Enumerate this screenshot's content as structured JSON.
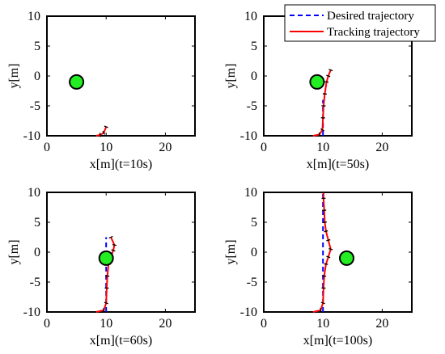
{
  "chart_data": [
    {
      "type": "line",
      "xlabel": "x[m](t=10s)",
      "ylabel": "y[m]",
      "xlim": [
        0,
        25
      ],
      "ylim": [
        -10,
        10
      ],
      "xticks": [
        "0",
        "10",
        "20"
      ],
      "yticks": [
        "10",
        "5",
        "0",
        "-5",
        "-10"
      ],
      "obstacle": {
        "x": 5,
        "y": -1,
        "color": "#22ee22"
      },
      "series": [
        {
          "role": "desired",
          "color": "#0000ff",
          "style": "dashed",
          "points": []
        },
        {
          "role": "tracking",
          "color": "#ff0000",
          "style": "solid",
          "points": [
            [
              8.3,
              -10.0
            ],
            [
              9.0,
              -9.85
            ],
            [
              9.6,
              -9.5
            ],
            [
              10.0,
              -8.5
            ]
          ]
        }
      ]
    },
    {
      "type": "line",
      "xlabel": "x[m](t=50s)",
      "ylabel": "y[m]",
      "xlim": [
        0,
        25
      ],
      "ylim": [
        -10,
        10
      ],
      "xticks": [
        "0",
        "10",
        "20"
      ],
      "yticks": [
        "10",
        "5",
        "0",
        "-5",
        "-10"
      ],
      "obstacle": {
        "x": 9,
        "y": -1,
        "color": "#22ee22"
      },
      "series": [
        {
          "role": "desired",
          "color": "#0000ff",
          "style": "dashed",
          "points": [
            [
              10,
              -10
            ],
            [
              10,
              -4
            ]
          ]
        },
        {
          "role": "tracking",
          "color": "#ff0000",
          "style": "solid",
          "points": [
            [
              8.3,
              -10.0
            ],
            [
              9.4,
              -9.8
            ],
            [
              9.9,
              -9.0
            ],
            [
              10.0,
              -7.0
            ],
            [
              10.1,
              -5.0
            ],
            [
              10.3,
              -3.0
            ],
            [
              10.6,
              -1.0
            ],
            [
              10.9,
              0.0
            ],
            [
              11.3,
              1.0
            ]
          ]
        }
      ]
    },
    {
      "type": "line",
      "xlabel": "x[m](t=60s)",
      "ylabel": "y[m]",
      "xlim": [
        0,
        25
      ],
      "ylim": [
        -10,
        10
      ],
      "xticks": [
        "0",
        "10",
        "20"
      ],
      "yticks": [
        "10",
        "5",
        "0",
        "-5",
        "-10"
      ],
      "obstacle": {
        "x": 10,
        "y": -1,
        "color": "#22ee22"
      },
      "series": [
        {
          "role": "desired",
          "color": "#0000ff",
          "style": "dashed",
          "points": [
            [
              10,
              -10
            ],
            [
              10,
              2.5
            ]
          ]
        },
        {
          "role": "tracking",
          "color": "#ff0000",
          "style": "solid",
          "points": [
            [
              8.3,
              -10.0
            ],
            [
              9.6,
              -9.7
            ],
            [
              10.0,
              -8.5
            ],
            [
              10.1,
              -6.0
            ],
            [
              10.2,
              -4.0
            ],
            [
              10.4,
              -2.0
            ],
            [
              10.7,
              -1.0
            ],
            [
              11.2,
              0.3
            ],
            [
              11.4,
              1.2
            ],
            [
              10.8,
              2.5
            ]
          ]
        }
      ]
    },
    {
      "type": "line",
      "xlabel": "x[m](t=100s)",
      "ylabel": "y[m]",
      "xlim": [
        0,
        25
      ],
      "ylim": [
        -10,
        10
      ],
      "xticks": [
        "0",
        "10",
        "20"
      ],
      "yticks": [
        "10",
        "5",
        "0",
        "-5",
        "-10"
      ],
      "obstacle": {
        "x": 14,
        "y": -1,
        "color": "#22ee22"
      },
      "series": [
        {
          "role": "desired",
          "color": "#0000ff",
          "style": "dashed",
          "points": [
            [
              10,
              -10
            ],
            [
              10,
              10
            ]
          ]
        },
        {
          "role": "tracking",
          "color": "#ff0000",
          "style": "solid",
          "points": [
            [
              8.3,
              -10.0
            ],
            [
              9.6,
              -9.7
            ],
            [
              10.0,
              -8.5
            ],
            [
              10.1,
              -6.0
            ],
            [
              10.2,
              -4.0
            ],
            [
              10.5,
              -2.0
            ],
            [
              10.9,
              -0.8
            ],
            [
              11.3,
              0.5
            ],
            [
              10.9,
              2.0
            ],
            [
              10.5,
              3.5
            ],
            [
              10.3,
              5.0
            ],
            [
              10.2,
              7.0
            ],
            [
              10.1,
              9.0
            ],
            [
              10.1,
              10.0
            ]
          ]
        }
      ]
    }
  ],
  "legend": {
    "desired": "Desired trajectory",
    "tracking": "Tracking trajectory"
  }
}
